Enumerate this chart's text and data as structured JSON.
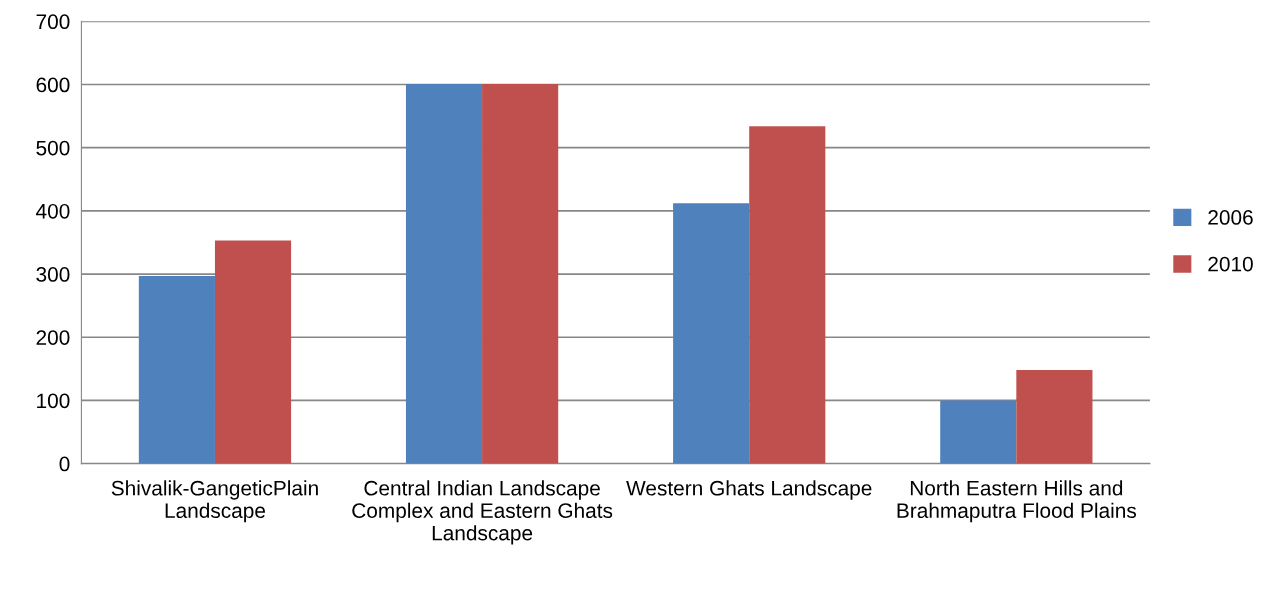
{
  "chart_data": {
    "type": "bar",
    "categories": [
      "Shivalik-GangeticPlain Landscape",
      "Central Indian Landscape Complex and Eastern Ghats Landscape",
      "Western Ghats Landscape",
      "North Eastern Hills and Brahmaputra Flood Plains"
    ],
    "series": [
      {
        "name": "2006",
        "color": "#4f81bd",
        "values": [
          297,
          601,
          412,
          100
        ]
      },
      {
        "name": "2010",
        "color": "#c0504d",
        "values": [
          353,
          601,
          534,
          148
        ]
      }
    ],
    "ylim": [
      0,
      700
    ],
    "yticks": [
      0,
      100,
      200,
      300,
      400,
      500,
      600,
      700
    ],
    "grid": "y",
    "legend": "right"
  }
}
